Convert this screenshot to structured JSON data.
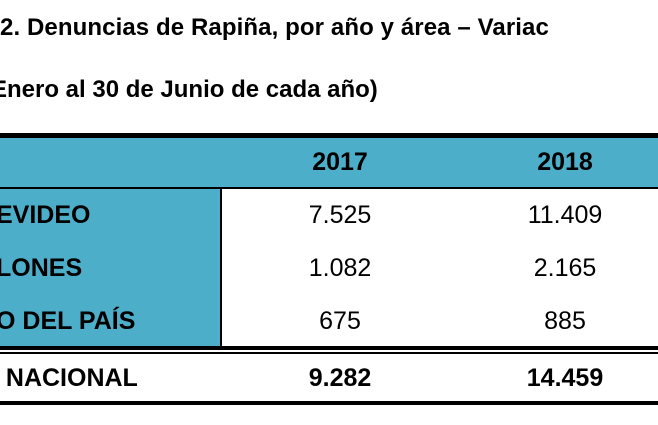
{
  "document": {
    "title": "2. Denuncias de Rapiña, por año y área – Variac",
    "subtitle": "Enero al 30 de Junio de cada año)"
  },
  "table": {
    "columns": [
      "2017",
      "2018"
    ],
    "rows": [
      {
        "label": "EVIDEO",
        "values": [
          "7.525",
          "11.409"
        ]
      },
      {
        "label": "LONES",
        "values": [
          "1.082",
          "2.165"
        ]
      },
      {
        "label": "O DEL PAÍS",
        "values": [
          "675",
          "885"
        ]
      }
    ],
    "total": {
      "label": ". NACIONAL",
      "values": [
        "9.282",
        "14.459"
      ]
    }
  },
  "colors": {
    "header_bg": "#4daec9"
  }
}
